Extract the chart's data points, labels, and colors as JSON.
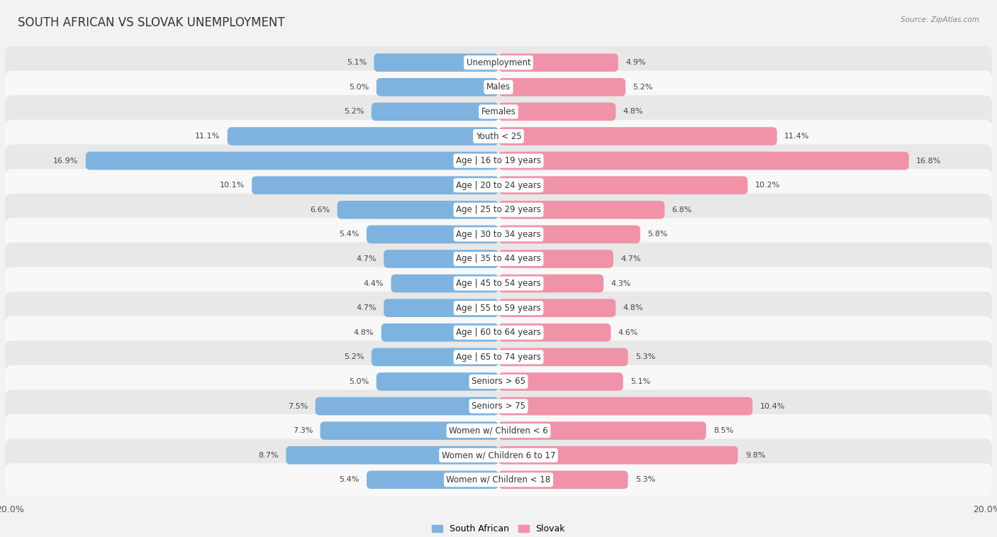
{
  "title": "SOUTH AFRICAN VS SLOVAK UNEMPLOYMENT",
  "source": "Source: ZipAtlas.com",
  "categories": [
    "Unemployment",
    "Males",
    "Females",
    "Youth < 25",
    "Age | 16 to 19 years",
    "Age | 20 to 24 years",
    "Age | 25 to 29 years",
    "Age | 30 to 34 years",
    "Age | 35 to 44 years",
    "Age | 45 to 54 years",
    "Age | 55 to 59 years",
    "Age | 60 to 64 years",
    "Age | 65 to 74 years",
    "Seniors > 65",
    "Seniors > 75",
    "Women w/ Children < 6",
    "Women w/ Children 6 to 17",
    "Women w/ Children < 18"
  ],
  "south_african": [
    5.1,
    5.0,
    5.2,
    11.1,
    16.9,
    10.1,
    6.6,
    5.4,
    4.7,
    4.4,
    4.7,
    4.8,
    5.2,
    5.0,
    7.5,
    7.3,
    8.7,
    5.4
  ],
  "slovak": [
    4.9,
    5.2,
    4.8,
    11.4,
    16.8,
    10.2,
    6.8,
    5.8,
    4.7,
    4.3,
    4.8,
    4.6,
    5.3,
    5.1,
    10.4,
    8.5,
    9.8,
    5.3
  ],
  "south_african_color": "#7eb3df",
  "slovak_color": "#f093a8",
  "bg_color": "#f2f2f2",
  "row_color_odd": "#e8e8e8",
  "row_color_even": "#f8f8f8",
  "max_val": 20.0,
  "title_fontsize": 12,
  "label_fontsize": 8.5,
  "value_fontsize": 8,
  "legend_fontsize": 9
}
